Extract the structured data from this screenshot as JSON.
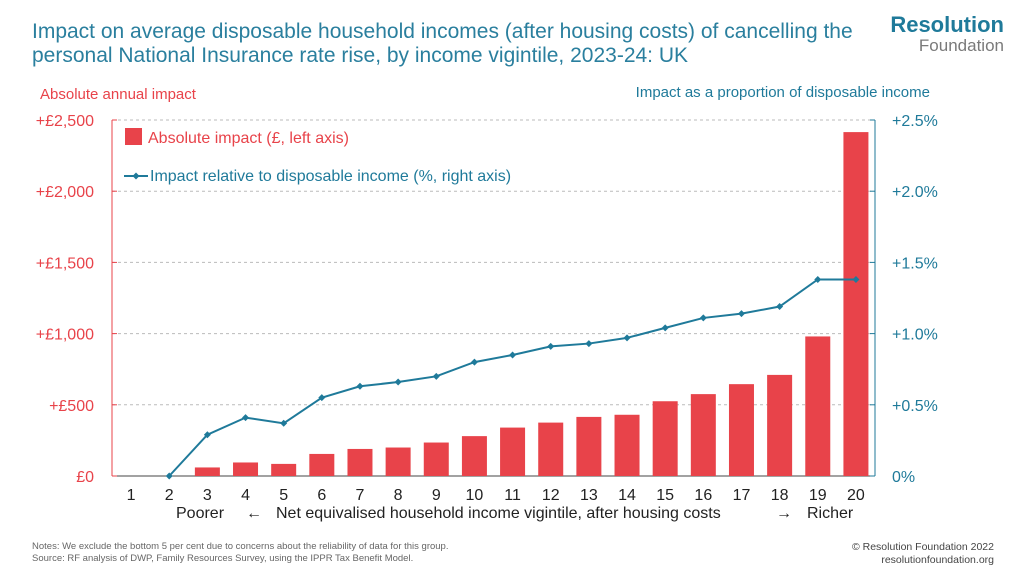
{
  "header": {
    "title": "Impact on average disposable household incomes (after housing costs) of cancelling the personal National Insurance rate rise, by income vigintile, 2023-24: UK"
  },
  "logo": {
    "line1": "Resolution",
    "line2": "Foundation"
  },
  "colors": {
    "bar": "#e8434a",
    "line": "#1f7a9a",
    "left_axis": "#e8434a",
    "right_axis": "#1f7a9a",
    "title": "#2a7f9e"
  },
  "chart_data": {
    "type": "bar",
    "left_axis_title": "Absolute annual impact",
    "right_axis_title": "Impact as a proportion of disposable income",
    "categories": [
      "1",
      "2",
      "3",
      "4",
      "5",
      "6",
      "7",
      "8",
      "9",
      "10",
      "11",
      "12",
      "13",
      "14",
      "15",
      "16",
      "17",
      "18",
      "19",
      "20"
    ],
    "left_ylim": [
      0,
      2500
    ],
    "left_ticks": [
      0,
      500,
      1000,
      1500,
      2000,
      2500
    ],
    "left_tick_labels": [
      "£0",
      "+£500",
      "+£1,000",
      "+£1,500",
      "+£2,000",
      "+£2,500"
    ],
    "right_ylim": [
      0,
      2.5
    ],
    "right_ticks": [
      0,
      0.5,
      1.0,
      1.5,
      2.0,
      2.5
    ],
    "right_tick_labels": [
      "0%",
      "+0.5%",
      "+1.0%",
      "+1.5%",
      "+2.0%",
      "+2.5%"
    ],
    "series": [
      {
        "name": "Absolute impact (£, left axis)",
        "type": "bar",
        "axis": "left",
        "values": [
          null,
          0,
          60,
          95,
          85,
          155,
          190,
          200,
          235,
          280,
          340,
          375,
          415,
          430,
          525,
          575,
          645,
          710,
          980,
          2415
        ]
      },
      {
        "name": "Impact relative to disposable income (%, right axis)",
        "type": "line",
        "axis": "right",
        "values": [
          null,
          0.0,
          0.29,
          0.41,
          0.37,
          0.55,
          0.63,
          0.66,
          0.7,
          0.8,
          0.85,
          0.91,
          0.93,
          0.97,
          1.04,
          1.11,
          1.14,
          1.19,
          1.38,
          1.38
        ]
      }
    ],
    "legend": [
      "Absolute impact (£, left axis)",
      "Impact relative to disposable income (%, right axis)"
    ],
    "legend_position": "top-left",
    "xlabel": {
      "left": "Poorer",
      "left_arrow": "←",
      "center": "Net equivalised household income vigintile, after housing costs",
      "right_arrow": "→",
      "right": "Richer"
    }
  },
  "footer": {
    "notes": "Notes: We exclude the bottom 5 per cent due to concerns about the reliability of data for this group.",
    "source": "Source: RF analysis of DWP, Family Resources Survey, using the IPPR Tax Benefit Model.",
    "copyright": "© Resolution Foundation 2022",
    "website": "resolutionfoundation.org"
  }
}
